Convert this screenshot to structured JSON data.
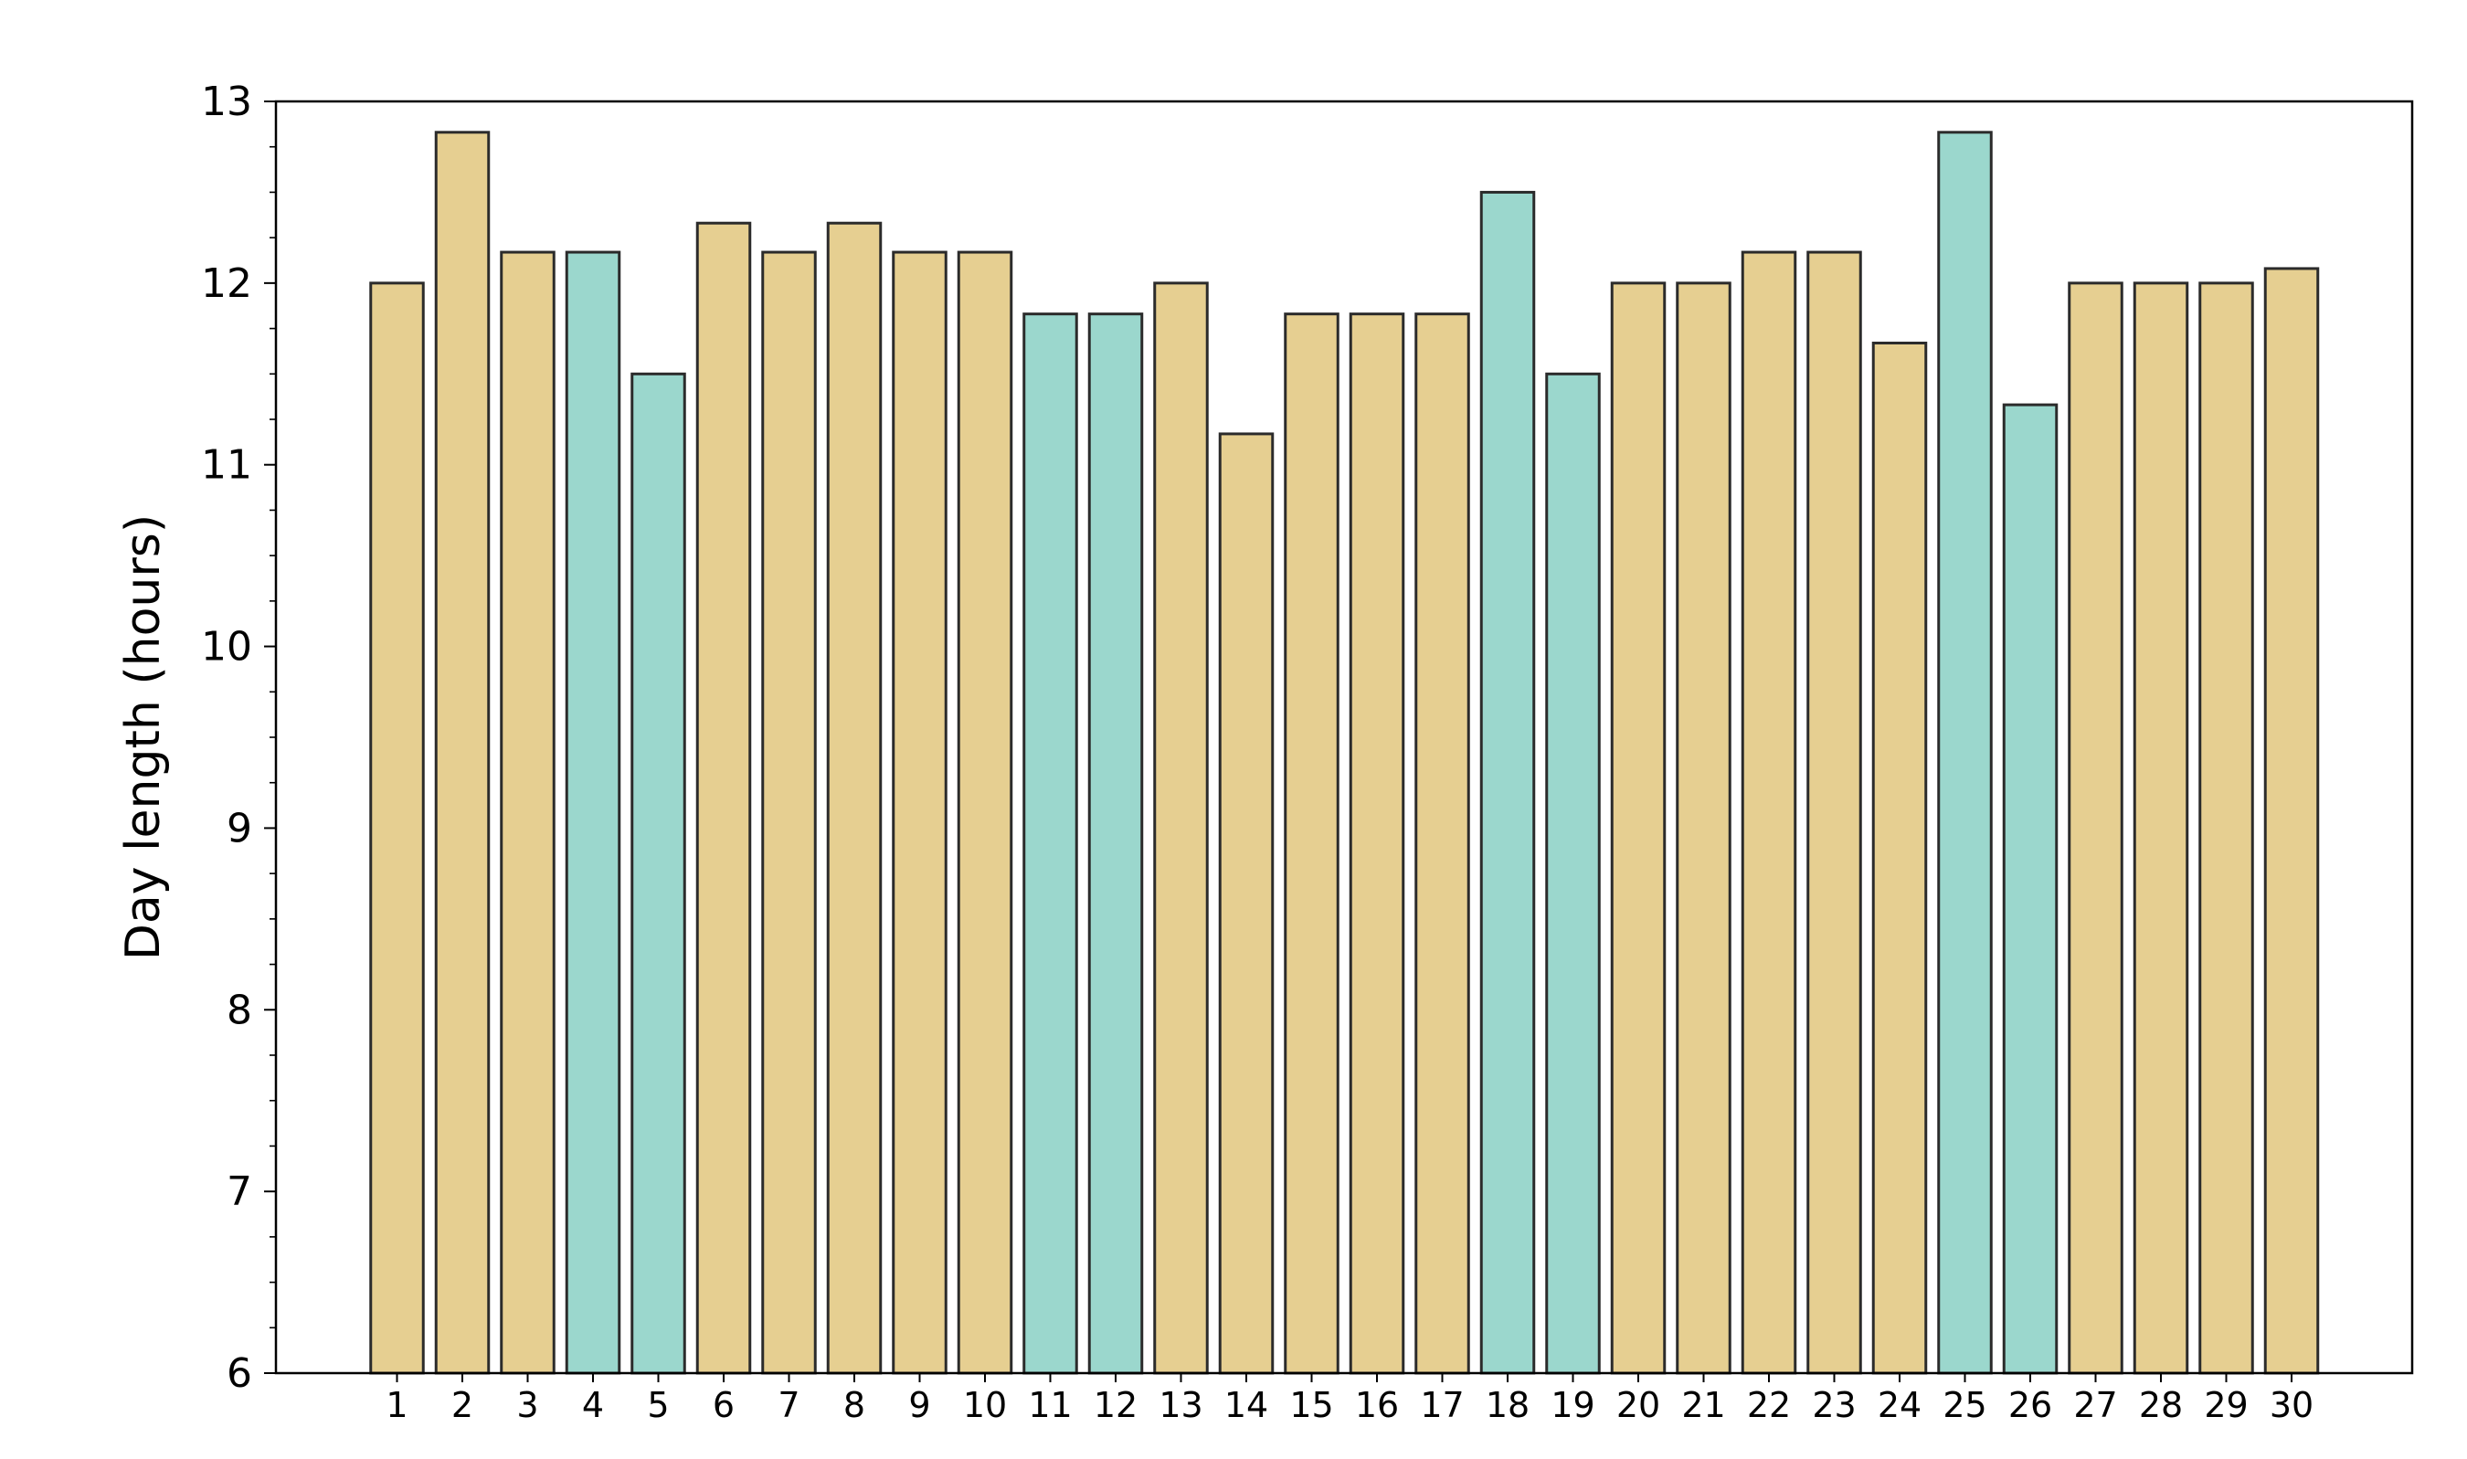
{
  "chart_data": {
    "type": "bar",
    "title": "",
    "xlabel": "",
    "ylabel": "Day length (hours)",
    "ylim": [
      6,
      13
    ],
    "yticks": [
      6,
      7,
      8,
      9,
      10,
      11,
      12,
      13
    ],
    "y_minor_step": 0.25,
    "grid": false,
    "legend": "none",
    "categories": [
      "1",
      "2",
      "3",
      "4",
      "5",
      "6",
      "7",
      "8",
      "9",
      "10",
      "11",
      "12",
      "13",
      "14",
      "15",
      "16",
      "17",
      "18",
      "19",
      "20",
      "21",
      "22",
      "23",
      "24",
      "25",
      "26",
      "27",
      "28",
      "29",
      "30"
    ],
    "values": [
      12.0,
      12.83,
      12.17,
      12.17,
      11.5,
      12.33,
      12.17,
      12.33,
      12.17,
      12.17,
      11.83,
      11.83,
      12.0,
      11.17,
      11.83,
      11.83,
      11.83,
      12.5,
      11.5,
      12.0,
      12.0,
      12.17,
      12.17,
      11.67,
      12.83,
      11.33,
      12.0,
      12.0,
      12.0,
      12.08
    ],
    "bar_color_groups": [
      "tan",
      "tan",
      "tan",
      "teal",
      "teal",
      "tan",
      "tan",
      "tan",
      "tan",
      "tan",
      "teal",
      "teal",
      "tan",
      "tan",
      "tan",
      "tan",
      "tan",
      "teal",
      "teal",
      "tan",
      "tan",
      "tan",
      "tan",
      "tan",
      "teal",
      "teal",
      "tan",
      "tan",
      "tan",
      "tan"
    ],
    "colors": {
      "tan": "#e6cf91",
      "teal": "#9bd7cd",
      "edge": "#2b2b2b",
      "axis": "#000000"
    }
  }
}
